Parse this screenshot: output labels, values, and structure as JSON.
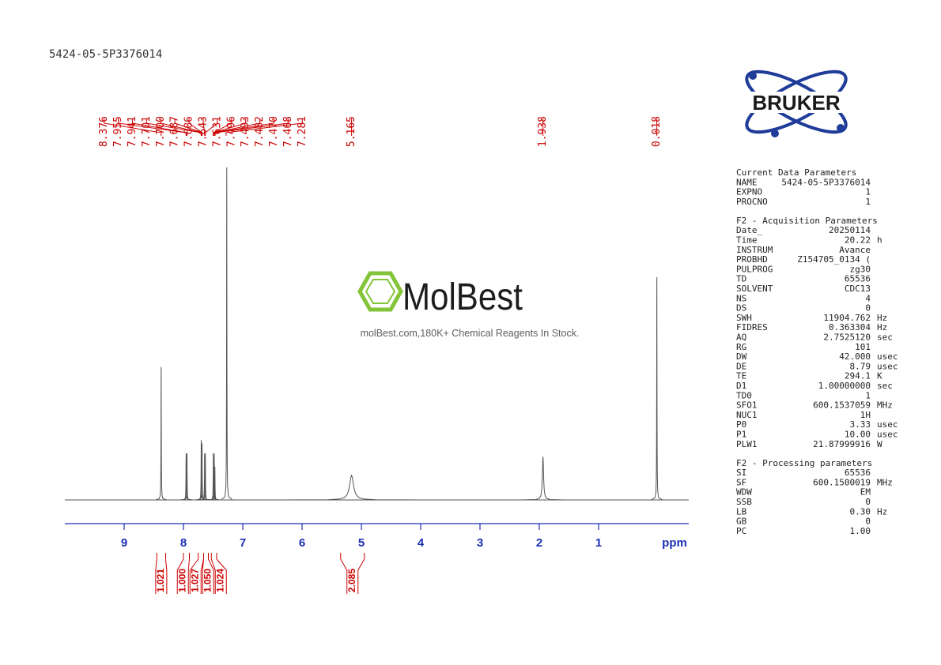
{
  "title": "5424-05-5P3376014",
  "logo": "BRUKER",
  "watermark": {
    "name": "MolBest",
    "tagline": "molBest.com,180K+ Chemical Reagents In Stock."
  },
  "chart_data": {
    "type": "spectrum",
    "x_label": "ppm",
    "xlim": [
      10.0,
      -0.52
    ],
    "xticks": [
      9,
      8,
      7,
      6,
      5,
      4,
      3,
      2,
      1
    ],
    "ylim": [
      0,
      100
    ],
    "color": "#555555",
    "x": [
      8.376,
      7.955,
      7.941,
      7.7,
      7.687,
      7.643,
      7.631,
      7.496,
      7.482,
      7.47,
      7.27,
      5.165,
      1.938,
      0.018
    ],
    "values": [
      40,
      14,
      14,
      18,
      17,
      14,
      14,
      14,
      14,
      10,
      100,
      7.4,
      13,
      67
    ],
    "widths": [
      0.003,
      0.003,
      0.003,
      0.003,
      0.003,
      0.003,
      0.003,
      0.003,
      0.003,
      0.003,
      0.003,
      0.04,
      0.012,
      0.003
    ],
    "peak_labels": [
      8.376,
      7.955,
      7.941,
      7.701,
      {
        "value": 7.7,
        "label": "7.700"
      },
      7.687,
      7.686,
      7.643,
      7.631,
      7.496,
      7.493,
      7.482,
      {
        "value": 7.47,
        "label": "7.470"
      },
      7.468,
      7.281,
      5.165,
      1.938,
      0.018
    ],
    "peak_label_color": "#cc0000",
    "integrals": [
      {
        "range": [
          8.45,
          8.3
        ],
        "value": 1.021
      },
      {
        "range": [
          8.0,
          7.9
        ],
        "value": {
          "value": 1,
          "label": "1.000"
        }
      },
      {
        "range": [
          7.75,
          7.66
        ],
        "value": 1.027
      },
      {
        "range": [
          7.66,
          7.58
        ],
        "value": {
          "value": 1.05,
          "label": "1.050"
        }
      },
      {
        "range": [
          7.53,
          7.44
        ],
        "value": 1.024
      },
      {
        "range": [
          5.35,
          4.95
        ],
        "value": 2.085
      }
    ]
  },
  "parameters": [
    {
      "heading": "Current Data Parameters",
      "rows": [
        [
          "NAME",
          "5424-05-5P3376014"
        ],
        [
          "EXPNO",
          "1"
        ],
        [
          "PROCNO",
          "1"
        ]
      ]
    },
    {
      "heading": "F2 - Acquisition Parameters",
      "rows": [
        [
          "Date_",
          "20250114"
        ],
        [
          "Time",
          "20.22",
          "h"
        ],
        [
          "INSTRUM",
          "Avance"
        ],
        [
          "PROBHD",
          "Z154705_0134 ("
        ],
        [
          "PULPROG",
          "zg30"
        ],
        [
          "TD",
          "65536"
        ],
        [
          "SOLVENT",
          "CDC13"
        ],
        [
          "NS",
          "4"
        ],
        [
          "DS",
          "0"
        ],
        [
          "SWH",
          "11904.762",
          "Hz"
        ],
        [
          "FIDRES",
          "0.363304",
          "Hz"
        ],
        [
          "AQ",
          "2.7525120",
          "sec"
        ],
        [
          "RG",
          "101"
        ],
        [
          "DW",
          "42.000",
          "usec"
        ],
        [
          "DE",
          "8.79",
          "usec"
        ],
        [
          "TE",
          "294.1",
          "K"
        ],
        [
          "D1",
          "1.00000000",
          "sec"
        ],
        [
          "TD0",
          "1"
        ],
        [
          "SFO1",
          "600.1537059",
          "MHz"
        ],
        [
          "NUC1",
          "1H"
        ],
        [
          "P0",
          "3.33",
          "usec"
        ],
        [
          "P1",
          "10.00",
          "usec"
        ],
        [
          "PLW1",
          "21.87999916",
          "W"
        ]
      ]
    },
    {
      "heading": "F2 - Processing parameters",
      "rows": [
        [
          "SI",
          "65536"
        ],
        [
          "SF",
          "600.1500019",
          "MHz"
        ],
        [
          "WDW",
          "EM"
        ],
        [
          "SSB",
          "0"
        ],
        [
          "LB",
          "0.30",
          "Hz"
        ],
        [
          "GB",
          "0"
        ],
        [
          "PC",
          "1.00"
        ]
      ]
    }
  ]
}
